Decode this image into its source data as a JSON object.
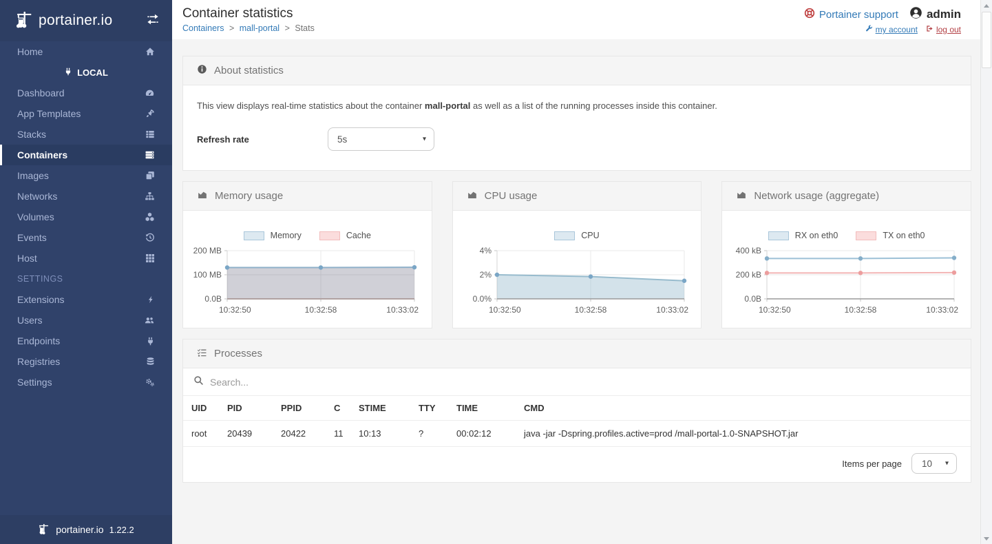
{
  "colors": {
    "sidebar_bg": "#30426a",
    "sidebar_dark": "#2d3e63",
    "accent": "#337ab7",
    "danger": "#b34045",
    "panel_header_bg": "#f5f5f5",
    "series_blue": "#97bbcd",
    "series_pink": "#f3b5b5"
  },
  "sidebar": {
    "logo_text": "portainer.io",
    "home_label": "Home",
    "endpoint_label": "LOCAL",
    "items": [
      {
        "label": "Dashboard",
        "icon": "tachometer"
      },
      {
        "label": "App Templates",
        "icon": "rocket"
      },
      {
        "label": "Stacks",
        "icon": "th-list"
      },
      {
        "label": "Containers",
        "icon": "server",
        "active": true
      },
      {
        "label": "Images",
        "icon": "clone"
      },
      {
        "label": "Networks",
        "icon": "sitemap"
      },
      {
        "label": "Volumes",
        "icon": "cubes"
      },
      {
        "label": "Events",
        "icon": "history"
      },
      {
        "label": "Host",
        "icon": "th"
      }
    ],
    "settings_label": "SETTINGS",
    "settings_items": [
      {
        "label": "Extensions",
        "icon": "bolt"
      },
      {
        "label": "Users",
        "icon": "users"
      },
      {
        "label": "Endpoints",
        "icon": "plug"
      },
      {
        "label": "Registries",
        "icon": "database"
      },
      {
        "label": "Settings",
        "icon": "cogs"
      }
    ],
    "version": "1.22.2"
  },
  "header": {
    "title": "Container statistics",
    "breadcrumb": {
      "root": "Containers",
      "separator": ">",
      "container": "mall-portal",
      "current": "Stats"
    },
    "support_label": "Portainer support",
    "username": "admin",
    "my_account_label": "my account",
    "log_out_label": "log out"
  },
  "about": {
    "title": "About statistics",
    "description_prefix": "This view displays real-time statistics about the container ",
    "container_name": "mall-portal",
    "description_suffix": " as well as a list of the running processes inside this container.",
    "refresh_rate_label": "Refresh rate",
    "refresh_rate_value": "5s"
  },
  "chart_data": [
    {
      "type": "area",
      "title": "Memory usage",
      "x": [
        "10:32:50",
        "10:32:58",
        "10:33:02"
      ],
      "ylim": [
        0,
        200
      ],
      "ylabel": "MB",
      "grid": true,
      "legend_position": "top",
      "y_ticks": [
        {
          "v": 200,
          "label": "200 MB"
        },
        {
          "v": 100,
          "label": "100 MB"
        },
        {
          "v": 0,
          "label": "0.0B"
        }
      ],
      "series": [
        {
          "name": "Memory",
          "values": [
            130,
            130,
            131
          ],
          "stroke": "#8fb0c9",
          "fill": "rgba(110,110,130,0.32)",
          "point": "#7aa6c6",
          "legend_fill": "#dde9f1",
          "legend_stroke": "#a9c6da"
        },
        {
          "name": "Cache",
          "values": [
            0,
            0,
            0
          ],
          "stroke": "#f0b7b7",
          "fill": "rgba(240,183,183,0.35)",
          "point": null,
          "legend_fill": "#fbdddd",
          "legend_stroke": "#f2bcbc"
        }
      ]
    },
    {
      "type": "area",
      "title": "CPU usage",
      "x": [
        "10:32:50",
        "10:32:58",
        "10:33:02"
      ],
      "ylim": [
        0,
        4
      ],
      "ylabel": "%",
      "grid": true,
      "legend_position": "top",
      "y_ticks": [
        {
          "v": 4,
          "label": "4%"
        },
        {
          "v": 2,
          "label": "2%"
        },
        {
          "v": 0,
          "label": "0.0%"
        }
      ],
      "series": [
        {
          "name": "CPU",
          "values": [
            2.0,
            1.85,
            1.5
          ],
          "stroke": "#97bbcd",
          "fill": "rgba(151,187,205,0.42)",
          "point": "#7aa6c6",
          "legend_fill": "#dde9f1",
          "legend_stroke": "#a9c6da"
        }
      ]
    },
    {
      "type": "line",
      "title": "Network usage (aggregate)",
      "x": [
        "10:32:50",
        "10:32:58",
        "10:33:02"
      ],
      "ylim": [
        0,
        400
      ],
      "ylabel": "kB",
      "grid": true,
      "legend_position": "top",
      "y_ticks": [
        {
          "v": 400,
          "label": "400 kB"
        },
        {
          "v": 200,
          "label": "200 kB"
        },
        {
          "v": 0,
          "label": "0.0B"
        }
      ],
      "series": [
        {
          "name": "RX on eth0",
          "values": [
            335,
            335,
            340
          ],
          "stroke": "#9cc0d6",
          "fill": null,
          "point": "#85aec9",
          "legend_fill": "#dde9f1",
          "legend_stroke": "#a9c6da"
        },
        {
          "name": "TX on eth0",
          "values": [
            215,
            215,
            218
          ],
          "stroke": "#f3b5b5",
          "fill": null,
          "point": "#ec9d9d",
          "legend_fill": "#fbdddd",
          "legend_stroke": "#f2bcbc"
        }
      ]
    }
  ],
  "processes": {
    "title": "Processes",
    "search_placeholder": "Search...",
    "columns": [
      "UID",
      "PID",
      "PPID",
      "C",
      "STIME",
      "TTY",
      "TIME",
      "CMD"
    ],
    "rows": [
      [
        "root",
        "20439",
        "20422",
        "11",
        "10:13",
        "?",
        "00:02:12",
        "java -jar -Dspring.profiles.active=prod /mall-portal-1.0-SNAPSHOT.jar"
      ]
    ],
    "items_per_page_label": "Items per page",
    "items_per_page_value": "10"
  }
}
